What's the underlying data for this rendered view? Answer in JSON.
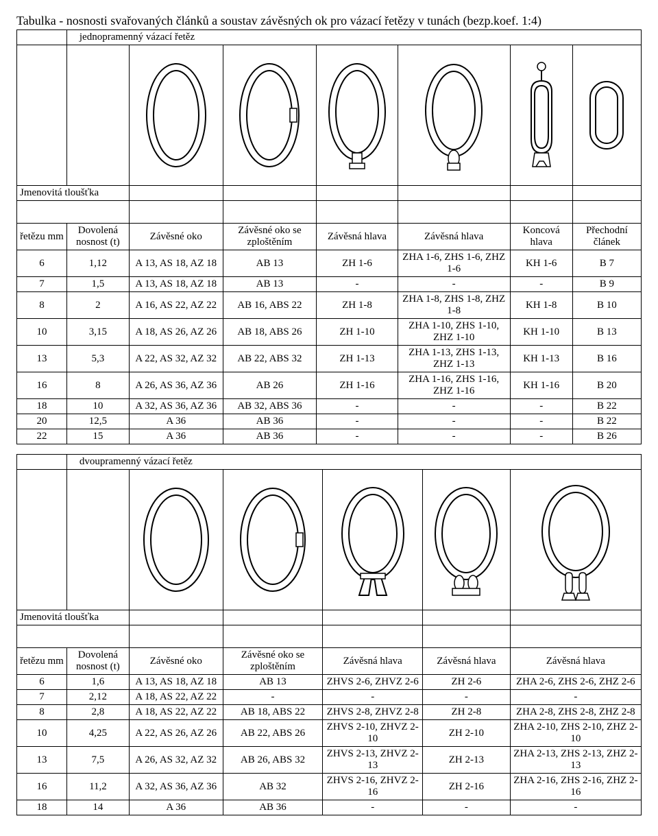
{
  "title": "Tabulka - nosnosti svařovaných článků a soustav závěsných ok pro vázací řetězy v tunách (bezp.koef. 1:4)",
  "section1": {
    "subtitle": "jednopramenný vázací řetěz",
    "labels": {
      "jmen": "Jmenovitá tloušťka",
      "retezu": "řetězu mm",
      "dovolena": "Dovolená nosnost (t)",
      "zav_oko": "Závěsné oko",
      "zav_oko_zpl": "Závěsné oko se zploštěním",
      "zh1": "Závěsná hlava",
      "zh2": "Závěsná hlava",
      "konc": "Koncová hlava",
      "prech": "Přechodní článek"
    },
    "rows": [
      {
        "mm": "6",
        "t": "1,12",
        "c1": "A 13, AS 18, AZ 18",
        "c2": "AB 13",
        "c3": "ZH 1-6",
        "c4": "ZHA 1-6, ZHS 1-6, ZHZ 1-6",
        "c5": "KH 1-6",
        "c6": "B 7"
      },
      {
        "mm": "7",
        "t": "1,5",
        "c1": "A 13, AS 18, AZ 18",
        "c2": "AB 13",
        "c3": "-",
        "c4": "-",
        "c5": "-",
        "c6": "B 9"
      },
      {
        "mm": "8",
        "t": "2",
        "c1": "A 16, AS 22, AZ 22",
        "c2": "AB 16, ABS 22",
        "c3": "ZH 1-8",
        "c4": "ZHA 1-8, ZHS 1-8, ZHZ 1-8",
        "c5": "KH 1-8",
        "c6": "B 10"
      },
      {
        "mm": "10",
        "t": "3,15",
        "c1": "A 18, AS 26, AZ 26",
        "c2": "AB 18, ABS 26",
        "c3": "ZH 1-10",
        "c4": "ZHA 1-10, ZHS 1-10, ZHZ 1-10",
        "c5": "KH 1-10",
        "c6": "B 13"
      },
      {
        "mm": "13",
        "t": "5,3",
        "c1": "A 22, AS 32, AZ 32",
        "c2": "AB 22, ABS 32",
        "c3": "ZH 1-13",
        "c4": "ZHA 1-13, ZHS 1-13, ZHZ 1-13",
        "c5": "KH 1-13",
        "c6": "B 16"
      },
      {
        "mm": "16",
        "t": "8",
        "c1": "A 26, AS 36, AZ 36",
        "c2": "AB 26",
        "c3": "ZH 1-16",
        "c4": "ZHA 1-16, ZHS 1-16, ZHZ 1-16",
        "c5": "KH 1-16",
        "c6": "B 20"
      },
      {
        "mm": "18",
        "t": "10",
        "c1": "A 32, AS 36, AZ 36",
        "c2": "AB 32, ABS 36",
        "c3": "-",
        "c4": "-",
        "c5": "-",
        "c6": "B 22"
      },
      {
        "mm": "20",
        "t": "12,5",
        "c1": "A 36",
        "c2": "AB 36",
        "c3": "-",
        "c4": "-",
        "c5": "-",
        "c6": "B 22"
      },
      {
        "mm": "22",
        "t": "15",
        "c1": "A 36",
        "c2": "AB 36",
        "c3": "-",
        "c4": "-",
        "c5": "-",
        "c6": "B 26"
      }
    ]
  },
  "section2": {
    "subtitle": "dvoupramenný vázací řetěz",
    "labels": {
      "jmen": "Jmenovitá tloušťka",
      "retezu": "řetězu mm",
      "dovolena": "Dovolená nosnost (t)",
      "zav_oko": "Závěsné oko",
      "zav_oko_zpl": "Závěsné oko se zploštěním",
      "zh1": "Závěsná hlava",
      "zh2": "Závěsná hlava",
      "zh3": "Závěsná hlava"
    },
    "rows": [
      {
        "mm": "6",
        "t": "1,6",
        "c1": "A 13, AS 18, AZ 18",
        "c2": "AB 13",
        "c3": "ZHVS 2-6, ZHVZ 2-6",
        "c4": "ZH 2-6",
        "c5": "ZHA 2-6, ZHS 2-6, ZHZ 2-6"
      },
      {
        "mm": "7",
        "t": "2,12",
        "c1": "A 18, AS 22, AZ 22",
        "c2": "-",
        "c3": "-",
        "c4": "-",
        "c5": "-"
      },
      {
        "mm": "8",
        "t": "2,8",
        "c1": "A 18, AS 22, AZ 22",
        "c2": "AB 18, ABS 22",
        "c3": "ZHVS 2-8, ZHVZ 2-8",
        "c4": "ZH 2-8",
        "c5": "ZHA 2-8, ZHS 2-8, ZHZ 2-8"
      },
      {
        "mm": "10",
        "t": "4,25",
        "c1": "A 22, AS 26, AZ 26",
        "c2": "AB 22, ABS 26",
        "c3": "ZHVS 2-10, ZHVZ 2-10",
        "c4": "ZH 2-10",
        "c5": "ZHA 2-10, ZHS 2-10, ZHZ 2-10"
      },
      {
        "mm": "13",
        "t": "7,5",
        "c1": "A 26, AS 32, AZ 32",
        "c2": "AB 26, ABS 32",
        "c3": "ZHVS 2-13, ZHVZ 2-13",
        "c4": "ZH 2-13",
        "c5": "ZHA 2-13, ZHS 2-13, ZHZ 2-13"
      },
      {
        "mm": "16",
        "t": "11,2",
        "c1": "A 32, AS 36, AZ 36",
        "c2": "AB 32",
        "c3": "ZHVS 2-16, ZHVZ 2-16",
        "c4": "ZH 2-16",
        "c5": "ZHA 2-16, ZHS 2-16, ZHZ 2-16"
      },
      {
        "mm": "18",
        "t": "14",
        "c1": "A 36",
        "c2": "AB 36",
        "c3": "-",
        "c4": "-",
        "c5": "-"
      }
    ]
  },
  "svg": {
    "stroke": "#000000",
    "fill": "#ffffff",
    "stroke_width": 2
  }
}
